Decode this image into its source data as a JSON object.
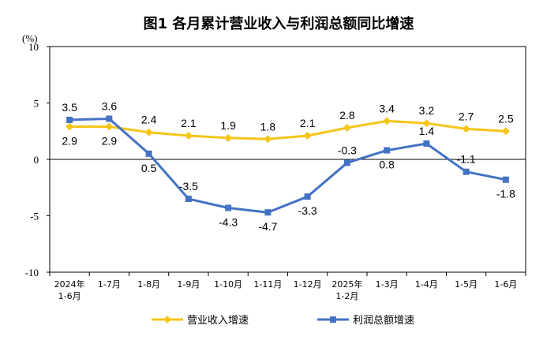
{
  "chart_data": {
    "type": "line",
    "title": "图1  各月累计营业收入与利润总额同比增速",
    "unit": "(%)",
    "ylim": [
      -10,
      10
    ],
    "yticks": [
      "10",
      "5",
      "0",
      "-5",
      "-10"
    ],
    "categories": [
      [
        "2024年",
        "1-6月"
      ],
      [
        "1-7月"
      ],
      [
        "1-8月"
      ],
      [
        "1-9月"
      ],
      [
        "1-10月"
      ],
      [
        "1-11月"
      ],
      [
        "1-12月"
      ],
      [
        "2025年",
        "1-2月"
      ],
      [
        "1-3月"
      ],
      [
        "1-4月"
      ],
      [
        "1-5月"
      ],
      [
        "1-6月"
      ]
    ],
    "series": [
      {
        "name": "营业收入增速",
        "color": "#f5c518",
        "marker": "diamond",
        "values": [
          2.9,
          2.9,
          2.4,
          2.1,
          1.9,
          1.8,
          2.1,
          2.8,
          3.4,
          3.2,
          2.7,
          2.5
        ],
        "labels": [
          "2.9",
          "2.9",
          "2.4",
          "2.1",
          "1.9",
          "1.8",
          "2.1",
          "2.8",
          "3.4",
          "3.2",
          "2.7",
          "2.5"
        ]
      },
      {
        "name": "利润总额增速",
        "color": "#4472c4",
        "marker": "square",
        "values": [
          3.5,
          3.6,
          0.5,
          -3.5,
          -4.3,
          -4.7,
          -3.3,
          -0.3,
          0.8,
          1.4,
          -1.1,
          -1.8
        ],
        "labels": [
          "3.5",
          "3.6",
          "0.5",
          "-3.5",
          "-4.3",
          "-4.7",
          "-3.3",
          "-0.3",
          "0.8",
          "1.4",
          "-1.1",
          "-1.8"
        ]
      }
    ],
    "grid": false,
    "legend": "bottom"
  }
}
